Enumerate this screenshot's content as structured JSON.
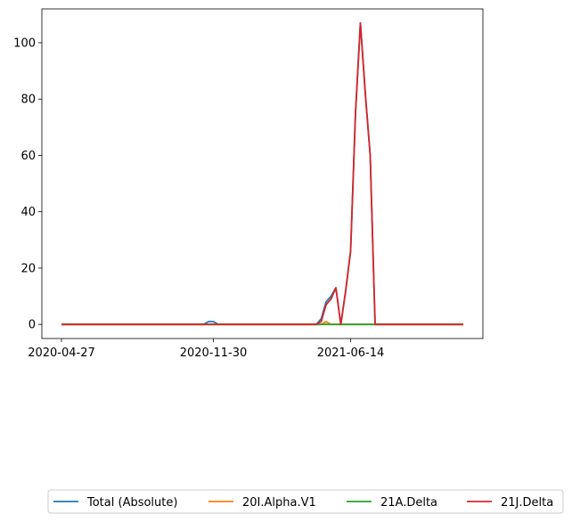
{
  "chart_data": {
    "type": "line",
    "x": [
      "2020-04-27",
      "2020-05-04",
      "2020-05-11",
      "2020-05-18",
      "2020-05-25",
      "2020-06-01",
      "2020-06-08",
      "2020-06-15",
      "2020-06-22",
      "2020-06-29",
      "2020-07-06",
      "2020-07-13",
      "2020-07-20",
      "2020-07-27",
      "2020-08-03",
      "2020-08-10",
      "2020-08-17",
      "2020-08-24",
      "2020-08-31",
      "2020-09-07",
      "2020-09-14",
      "2020-09-21",
      "2020-09-28",
      "2020-10-05",
      "2020-10-12",
      "2020-10-19",
      "2020-10-26",
      "2020-11-02",
      "2020-11-09",
      "2020-11-16",
      "2020-11-23",
      "2020-11-30",
      "2020-12-07",
      "2020-12-14",
      "2020-12-21",
      "2020-12-28",
      "2021-01-04",
      "2021-01-11",
      "2021-01-18",
      "2021-01-25",
      "2021-02-01",
      "2021-02-08",
      "2021-02-15",
      "2021-02-22",
      "2021-03-01",
      "2021-03-08",
      "2021-03-15",
      "2021-03-22",
      "2021-03-29",
      "2021-04-05",
      "2021-04-12",
      "2021-04-19",
      "2021-04-26",
      "2021-05-03",
      "2021-05-10",
      "2021-05-17",
      "2021-05-24",
      "2021-05-31",
      "2021-06-07",
      "2021-06-14",
      "2021-06-21",
      "2021-06-28",
      "2021-07-05",
      "2021-07-12",
      "2021-07-19",
      "2021-07-26",
      "2021-08-02",
      "2021-08-09",
      "2021-08-16",
      "2021-08-23",
      "2021-08-30",
      "2021-09-06",
      "2021-09-13",
      "2021-09-20",
      "2021-09-27",
      "2021-10-04",
      "2021-10-11",
      "2021-10-18",
      "2021-10-25",
      "2021-11-01",
      "2021-11-08",
      "2021-11-15",
      "2021-11-22"
    ],
    "series": [
      {
        "name": "Total (Absolute)",
        "color": "#1f77b4",
        "values": [
          0,
          0,
          0,
          0,
          0,
          0,
          0,
          0,
          0,
          0,
          0,
          0,
          0,
          0,
          0,
          0,
          0,
          0,
          0,
          0,
          0,
          0,
          0,
          0,
          0,
          0,
          0,
          0,
          0,
          0,
          1,
          1,
          0,
          0,
          0,
          0,
          0,
          0,
          0,
          0,
          0,
          0,
          0,
          0,
          0,
          0,
          0,
          0,
          0,
          0,
          0,
          0,
          0,
          2,
          8,
          10,
          13,
          0,
          12,
          26,
          75,
          107,
          82,
          60,
          0,
          0,
          0,
          0,
          0,
          0,
          0,
          0,
          0,
          0,
          0,
          0,
          0,
          0,
          0,
          0,
          0,
          0,
          0
        ]
      },
      {
        "name": "20I.Alpha.V1",
        "color": "#ff7f0e",
        "values": [
          0,
          0,
          0,
          0,
          0,
          0,
          0,
          0,
          0,
          0,
          0,
          0,
          0,
          0,
          0,
          0,
          0,
          0,
          0,
          0,
          0,
          0,
          0,
          0,
          0,
          0,
          0,
          0,
          0,
          0,
          0,
          0,
          0,
          0,
          0,
          0,
          0,
          0,
          0,
          0,
          0,
          0,
          0,
          0,
          0,
          0,
          0,
          0,
          0,
          0,
          0,
          0,
          0,
          0,
          1,
          0,
          0,
          0,
          0,
          0,
          0,
          0,
          0,
          0,
          0,
          0,
          0,
          0,
          0,
          0,
          0,
          0,
          0,
          0,
          0,
          0,
          0,
          0,
          0,
          0,
          0,
          0,
          0
        ]
      },
      {
        "name": "21A.Delta",
        "color": "#2ca02c",
        "values": [
          0,
          0,
          0,
          0,
          0,
          0,
          0,
          0,
          0,
          0,
          0,
          0,
          0,
          0,
          0,
          0,
          0,
          0,
          0,
          0,
          0,
          0,
          0,
          0,
          0,
          0,
          0,
          0,
          0,
          0,
          0,
          0,
          0,
          0,
          0,
          0,
          0,
          0,
          0,
          0,
          0,
          0,
          0,
          0,
          0,
          0,
          0,
          0,
          0,
          0,
          0,
          0,
          0,
          0,
          0,
          0,
          0,
          0,
          0,
          0,
          0,
          0,
          0,
          0,
          0,
          0,
          0,
          0,
          0,
          0,
          0,
          0,
          0,
          0,
          0,
          0,
          0,
          0,
          0,
          0,
          0,
          0,
          0
        ]
      },
      {
        "name": "21J.Delta",
        "color": "#d62728",
        "values": [
          0,
          0,
          0,
          0,
          0,
          0,
          0,
          0,
          0,
          0,
          0,
          0,
          0,
          0,
          0,
          0,
          0,
          0,
          0,
          0,
          0,
          0,
          0,
          0,
          0,
          0,
          0,
          0,
          0,
          0,
          0,
          0,
          0,
          0,
          0,
          0,
          0,
          0,
          0,
          0,
          0,
          0,
          0,
          0,
          0,
          0,
          0,
          0,
          0,
          0,
          0,
          0,
          0,
          1,
          7,
          9,
          13,
          0,
          12,
          26,
          75,
          107,
          82,
          60,
          0,
          0,
          0,
          0,
          0,
          0,
          0,
          0,
          0,
          0,
          0,
          0,
          0,
          0,
          0,
          0,
          0,
          0,
          0
        ]
      }
    ],
    "x_ticks": [
      "2020-04-27",
      "2020-11-30",
      "2021-06-14"
    ],
    "y_ticks": [
      0,
      20,
      40,
      60,
      80,
      100
    ],
    "ylim": [
      -5,
      112
    ],
    "legend": "bottom-center",
    "grid": false
  }
}
